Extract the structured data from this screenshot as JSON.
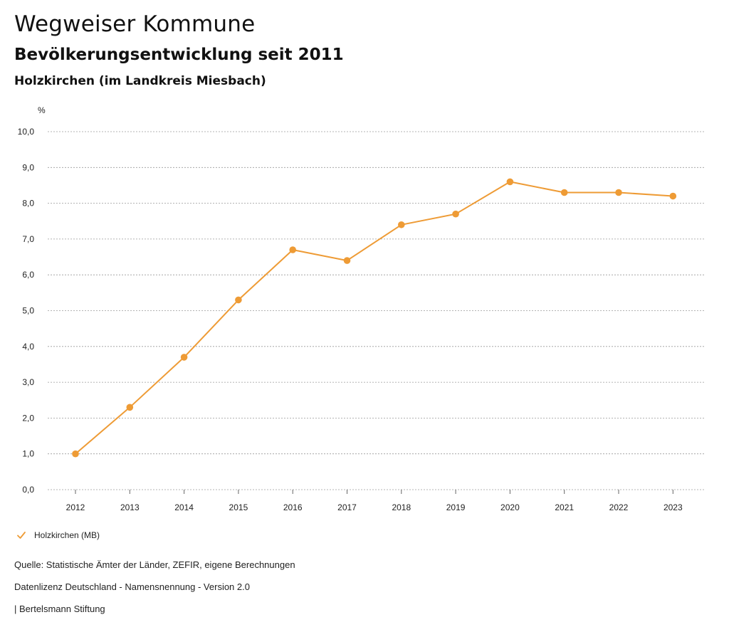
{
  "header": {
    "title": "Wegweiser Kommune",
    "subtitle": "Bevölkerungsentwicklung seit 2011",
    "region": "Holzkirchen (im Landkreis Miesbach)"
  },
  "chart_data": {
    "type": "line",
    "title": "Bevölkerungsentwicklung seit 2011",
    "ylabel": "%",
    "xlabel": "",
    "categories": [
      "2012",
      "2013",
      "2014",
      "2015",
      "2016",
      "2017",
      "2018",
      "2019",
      "2020",
      "2021",
      "2022",
      "2023"
    ],
    "series": [
      {
        "name": "Holzkirchen (MB)",
        "values": [
          1.0,
          2.3,
          3.7,
          5.3,
          6.7,
          6.4,
          7.4,
          7.7,
          8.6,
          8.3,
          8.3,
          8.2
        ]
      }
    ],
    "ylim": [
      0,
      10
    ],
    "yticks": [
      "0,0",
      "1,0",
      "2,0",
      "3,0",
      "4,0",
      "5,0",
      "6,0",
      "7,0",
      "8,0",
      "9,0",
      "10,0"
    ],
    "grid": true,
    "legend_position": "bottom-left"
  },
  "colors": {
    "series": "#ee9b35",
    "grid": "#9a9a9a"
  },
  "legend": {
    "label": "Holzkirchen (MB)",
    "icon": "checkmark-icon"
  },
  "footer": {
    "source": "Quelle: Statistische Ämter der Länder, ZEFIR, eigene Berechnungen",
    "license": "Datenlizenz Deutschland - Namensnennung - Version 2.0",
    "publisher": "| Bertelsmann Stiftung"
  }
}
